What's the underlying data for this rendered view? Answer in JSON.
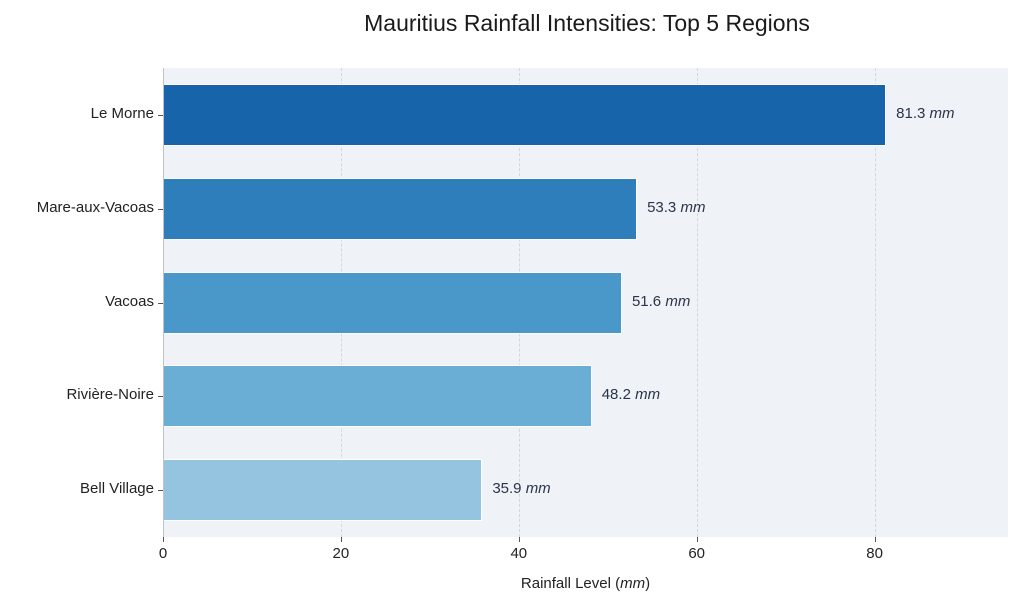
{
  "chart_data": {
    "type": "bar",
    "orientation": "horizontal",
    "title": "Mauritius Rainfall Intensities: Top 5 Regions",
    "xlabel": "Rainfall Level (mm)",
    "xlabel_main": "Rainfall Level (",
    "xlabel_unit": "mm",
    "xlabel_close": ")",
    "ylabel": "",
    "categories": [
      "Le Morne",
      "Mare-aux-Vacoas",
      "Vacoas",
      "Rivière-Noire",
      "Bell Village"
    ],
    "values": [
      81.3,
      53.3,
      51.6,
      48.2,
      35.9
    ],
    "value_labels": [
      "81.3",
      "53.3",
      "51.6",
      "48.2",
      "35.9"
    ],
    "value_unit": "mm",
    "bar_colors": [
      "#1764ab",
      "#2f7ebc",
      "#4a98c9",
      "#6aaed6",
      "#94c4df"
    ],
    "xlim": [
      0,
      95
    ],
    "xticks": [
      0,
      20,
      40,
      60,
      80
    ],
    "xtick_labels": [
      "0",
      "20",
      "40",
      "60",
      "80"
    ],
    "grid": {
      "x": true,
      "y": false,
      "style": "dashed"
    },
    "background": "#eff3f8",
    "legend": null
  }
}
